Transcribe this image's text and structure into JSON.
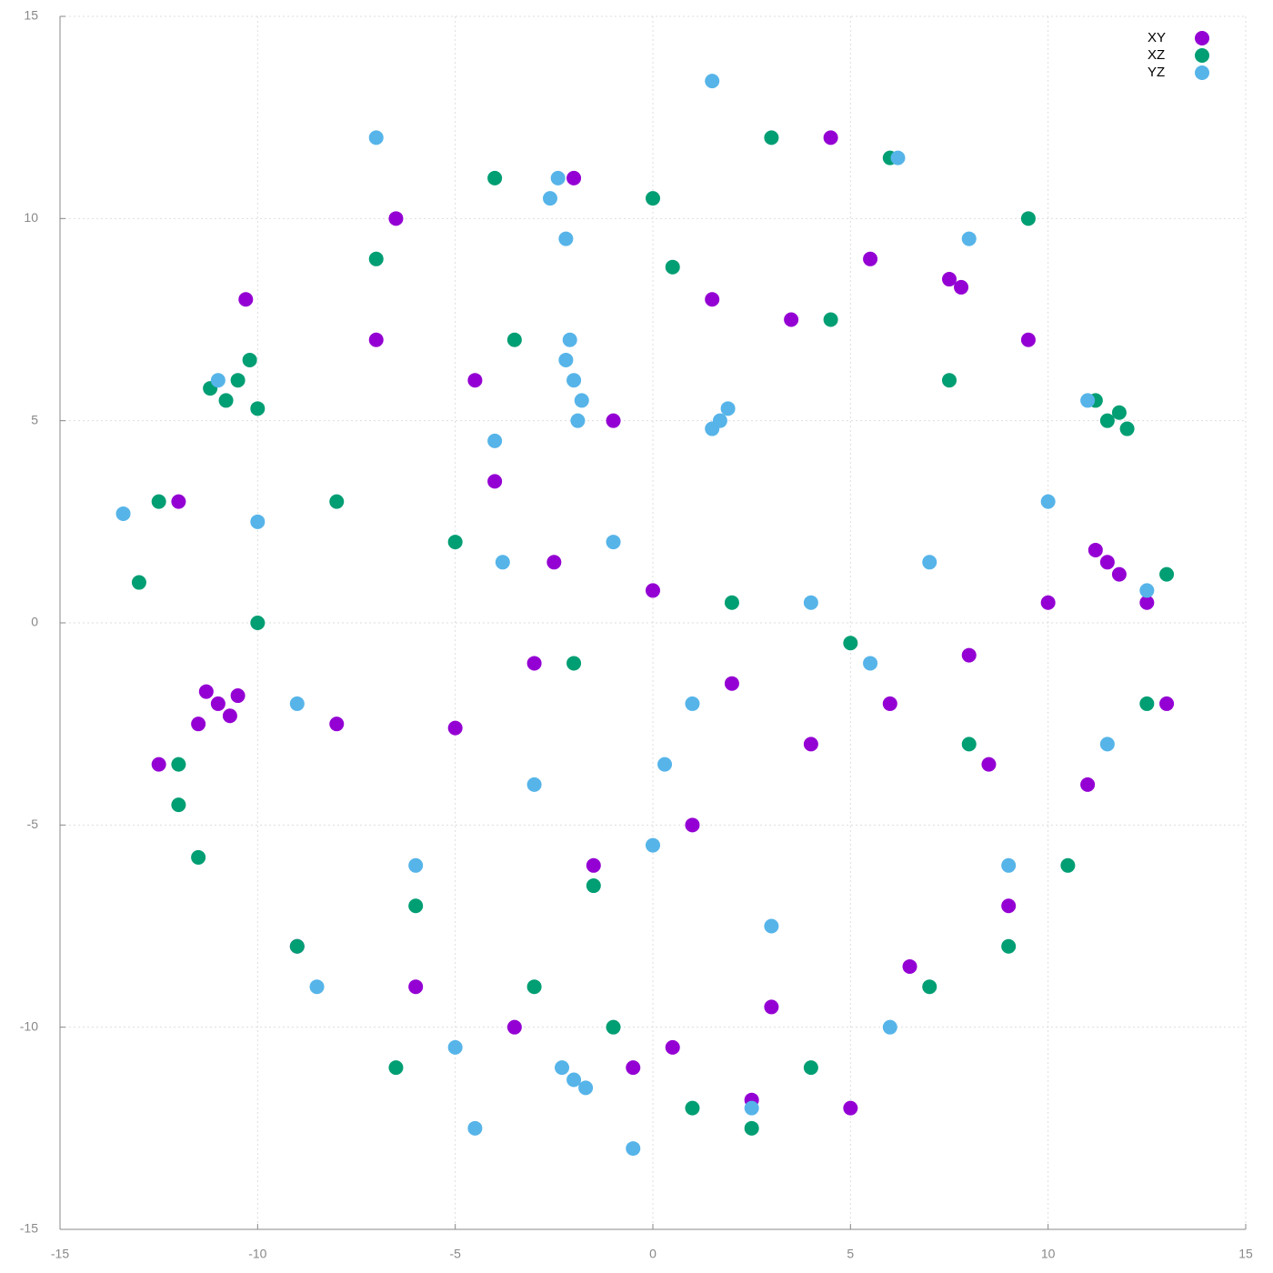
{
  "chart_data": {
    "type": "scatter",
    "xlim": [
      -15,
      15
    ],
    "ylim": [
      -15,
      15
    ],
    "xticks": [
      -15,
      -10,
      -5,
      0,
      5,
      10,
      15
    ],
    "yticks": [
      -15,
      -10,
      -5,
      0,
      5,
      10,
      15
    ],
    "grid": true,
    "legend": "top-right",
    "series": [
      {
        "name": "XY",
        "color": "#9400d3",
        "x": [
          -11,
          -11.3,
          -10.7,
          -11.5,
          -10.5,
          11.5,
          11.8,
          11.2,
          -12.5,
          -8,
          -5,
          -3,
          -2.5,
          0,
          2,
          4,
          6,
          8,
          10,
          12.5,
          -7,
          -4.5,
          -1,
          1.5,
          3.5,
          5.5,
          7.5,
          9.5,
          -9,
          -6,
          -3.5,
          0.5,
          3,
          6.5,
          9,
          -12,
          13,
          -0.5,
          2.5,
          5,
          -6.5,
          7.8,
          -2,
          4.5,
          -10.3,
          11,
          -1.5,
          1,
          8.5,
          -4
        ],
        "values": [
          -2,
          -1.7,
          -2.3,
          -2.5,
          -1.8,
          1.5,
          1.2,
          1.8,
          -3.5,
          -2.5,
          -2.6,
          -1,
          1.5,
          0.8,
          -1.5,
          -3,
          -2,
          -0.8,
          0.5,
          0.5,
          7,
          6,
          5,
          8,
          7.5,
          9,
          8.5,
          7,
          -8,
          -9,
          -10,
          -10.5,
          -9.5,
          -8.5,
          -7,
          3,
          -2,
          -11,
          -11.8,
          -12,
          10,
          8.3,
          11,
          12,
          8,
          -4,
          -6,
          -5,
          -3.5,
          3.5
        ]
      },
      {
        "name": "XZ",
        "color": "#009e73",
        "x": [
          -10.5,
          -10.8,
          -10.2,
          -11.2,
          -10,
          11.5,
          11.8,
          12,
          11.2,
          -12.5,
          -13,
          -12,
          -11.5,
          -9,
          -6,
          -3,
          -1,
          1,
          4,
          7,
          9,
          12.5,
          13,
          -8,
          -5,
          -2,
          2,
          5,
          8,
          -7,
          -4,
          0,
          3,
          6,
          9.5,
          -10,
          -12,
          -3.5,
          0.5,
          4.5,
          7.5,
          -1.5,
          10.5,
          -6.5,
          2.5
        ],
        "values": [
          6,
          5.5,
          6.5,
          5.8,
          5.3,
          5,
          5.2,
          4.8,
          5.5,
          3,
          1,
          -4.5,
          -5.8,
          -8,
          -7,
          -9,
          -10,
          -12,
          -11,
          -9,
          -8,
          -2,
          1.2,
          3,
          2,
          -1,
          0.5,
          -0.5,
          -3,
          9,
          11,
          10.5,
          12,
          11.5,
          10,
          0,
          -3.5,
          7,
          8.8,
          7.5,
          6,
          -6.5,
          -6,
          -11,
          -12.5
        ]
      },
      {
        "name": "YZ",
        "color": "#56b4e9",
        "x": [
          -2,
          -1.8,
          -2.2,
          -1.9,
          -2.1,
          1.7,
          1.5,
          1.9,
          -2,
          -1.7,
          -2.3,
          -2.4,
          -2.6,
          -7,
          -4,
          -1,
          1,
          4,
          7,
          10,
          12.5,
          -13.4,
          -11,
          -9,
          -6,
          -3,
          0,
          3,
          6,
          9,
          -8.5,
          -5,
          -0.5,
          2.5,
          5.5,
          8,
          11,
          -10,
          -4.5,
          1.5,
          -2.2,
          0.3,
          -3.8,
          6.2,
          11.5
        ],
        "values": [
          6,
          5.5,
          6.5,
          5,
          7,
          5,
          4.8,
          5.3,
          -11.3,
          -11.5,
          -11,
          11,
          10.5,
          12,
          4.5,
          2,
          -2,
          0.5,
          1.5,
          3,
          0.8,
          2.7,
          6,
          -2,
          -6,
          -4,
          -5.5,
          -7.5,
          -10,
          -6,
          -9,
          -10.5,
          -13,
          -12,
          -1,
          9.5,
          5.5,
          2.5,
          -12.5,
          13.4,
          9.5,
          -3.5,
          1.5,
          11.5,
          -3
        ]
      }
    ]
  }
}
